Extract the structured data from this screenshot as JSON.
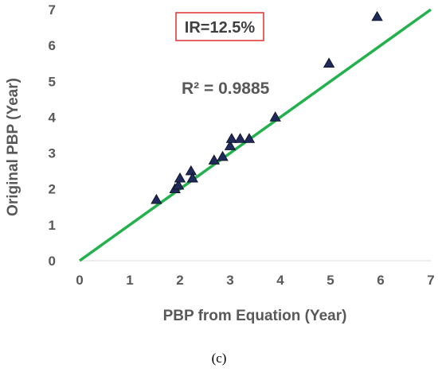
{
  "chart_data": {
    "type": "scatter",
    "xlabel": "PBP from Equation (Year)",
    "ylabel": "Original PBP (Year)",
    "xlim": [
      0,
      7
    ],
    "ylim": [
      0,
      7
    ],
    "x_ticks": [
      "0",
      "1",
      "2",
      "3",
      "4",
      "5",
      "6",
      "7"
    ],
    "y_ticks": [
      "0",
      "1",
      "2",
      "3",
      "4",
      "5",
      "6",
      "7"
    ],
    "grid": false,
    "annotation_box": "IR=12.5%",
    "r_squared_label": "R² = 0.9885",
    "caption": "(c)",
    "trendline": {
      "x": [
        0,
        7
      ],
      "y": [
        0,
        7
      ],
      "color": "#22b14c"
    },
    "marker": {
      "shape": "triangle",
      "color": "#1f2a5a"
    },
    "box_border_color": "#e03030",
    "points": [
      {
        "x": 1.53,
        "y": 1.7
      },
      {
        "x": 1.9,
        "y": 2.0
      },
      {
        "x": 1.97,
        "y": 2.1
      },
      {
        "x": 2.0,
        "y": 2.3
      },
      {
        "x": 2.22,
        "y": 2.5
      },
      {
        "x": 2.25,
        "y": 2.3
      },
      {
        "x": 2.68,
        "y": 2.8
      },
      {
        "x": 2.85,
        "y": 2.9
      },
      {
        "x": 3.0,
        "y": 3.2
      },
      {
        "x": 3.03,
        "y": 3.4
      },
      {
        "x": 3.2,
        "y": 3.4
      },
      {
        "x": 3.38,
        "y": 3.4
      },
      {
        "x": 3.9,
        "y": 4.0
      },
      {
        "x": 4.97,
        "y": 5.5
      },
      {
        "x": 5.93,
        "y": 6.8
      }
    ]
  }
}
